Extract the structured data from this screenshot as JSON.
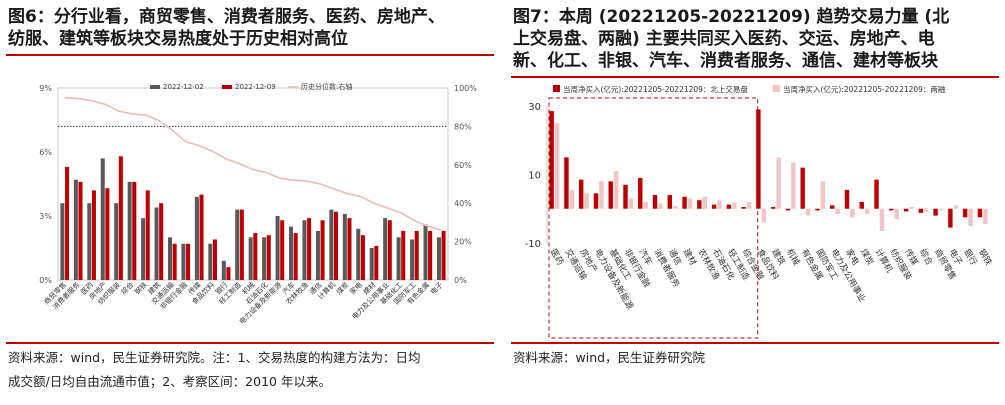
{
  "colors": {
    "dark": "#595959",
    "red": "#c00000",
    "pink": "#f2c4c4",
    "line": "#f0b8b8",
    "accent": "#c00000"
  },
  "left": {
    "title_lines": [
      "图6：分行业看，商贸零售、消费者服务、医药、房地产、",
      "纺服、建筑等板块交易热度处于历史相对高位"
    ],
    "note_lines": [
      "资料来源：wind，民生证券研究院。注：1、交易热度的构建方法为：日均",
      "成交额/日均自由流通市值；2、考察区间：2010 年以来。"
    ]
  },
  "right": {
    "title_lines": [
      "图7：本周 (20221205-20221209) 趋势交易力量 (北",
      "上交易盘、两融) 主要共同买入医药、交运、房地产、电",
      "新、化工、非银、汽车、消费者服务、通信、建材等板块"
    ],
    "note_lines": [
      "资料来源：wind，民生证券研究院"
    ]
  },
  "chart_data": [
    {
      "type": "bar",
      "title": "",
      "categories": [
        "商贸零售",
        "消费者服务",
        "医药",
        "房地产",
        "纺织服装",
        "综合",
        "钢铁",
        "建筑",
        "交通运输",
        "非银行金融",
        "传媒",
        "食品饮料",
        "银行",
        "轻工制造",
        "机械",
        "石油石化",
        "电力设备及新能源",
        "汽车",
        "农林牧渔",
        "通信",
        "计算机",
        "煤炭",
        "家电",
        "建材",
        "电力及公用事业",
        "基础化工",
        "国防军工",
        "有色金属",
        "电子"
      ],
      "series": [
        {
          "name": "2022-12-02",
          "axis": "left",
          "values": [
            3.6,
            4.7,
            3.6,
            5.7,
            3.6,
            4.6,
            2.9,
            3.4,
            2.0,
            1.7,
            3.9,
            1.7,
            0.9,
            3.3,
            2.0,
            2.0,
            3.0,
            2.5,
            2.8,
            2.3,
            3.3,
            3.1,
            2.4,
            1.5,
            2.9,
            2.0,
            1.9,
            2.6,
            2.0
          ]
        },
        {
          "name": "2022-12-09",
          "axis": "left",
          "values": [
            5.3,
            4.6,
            4.2,
            4.3,
            5.8,
            4.6,
            4.2,
            3.6,
            1.7,
            1.7,
            4.0,
            1.9,
            0.6,
            3.3,
            2.2,
            2.1,
            2.8,
            2.2,
            2.9,
            2.8,
            3.2,
            2.9,
            2.1,
            1.6,
            2.8,
            2.3,
            2.3,
            2.3,
            2.3
          ]
        },
        {
          "name": "历史分位数:右轴",
          "axis": "right",
          "type": "line",
          "values": [
            95,
            94.5,
            93.5,
            91.5,
            88,
            86.5,
            86,
            83,
            78,
            72,
            70,
            67,
            63,
            60.5,
            57.5,
            56,
            53,
            52,
            51.5,
            50,
            47.5,
            45,
            43.5,
            40,
            37.5,
            35,
            31,
            28,
            26
          ]
        }
      ],
      "yleft_ticks": [
        "0%",
        "3%",
        "6%",
        "9%"
      ],
      "yleft_lim": [
        0,
        9
      ],
      "yright_ticks": [
        "0%",
        "20%",
        "40%",
        "60%",
        "80%",
        "100%"
      ],
      "yright_lim": [
        0,
        100
      ],
      "ref_line_right": 80,
      "legend_position": "top"
    },
    {
      "type": "bar",
      "title": "",
      "categories": [
        "医药",
        "交通运输",
        "房地产",
        "电力设备及新能源",
        "基础化工",
        "非银行金融",
        "汽车",
        "消费者服务",
        "通信",
        "建材",
        "农林牧渔",
        "石油石化",
        "轻工制造",
        "综合金融",
        "食品饮料",
        "建筑",
        "机械",
        "有色金属",
        "国防军工",
        "电力及公用事业",
        "家电",
        "煤炭",
        "计算机",
        "纺织服装",
        "传媒",
        "综合",
        "商贸零售",
        "电子",
        "银行",
        "钢铁"
      ],
      "series": [
        {
          "name": "当周净买入(亿元):20221205-20221209：北上交易盘",
          "values": [
            28.5,
            15,
            8.5,
            4.5,
            8,
            7,
            9,
            4,
            4,
            3.5,
            2.5,
            1.2,
            1.2,
            0.5,
            29,
            0.5,
            -0.5,
            12,
            -0.5,
            1,
            5.5,
            2,
            8.5,
            -0.5,
            -0.8,
            -1.2,
            -2,
            -5.5,
            -2.5,
            -2.5
          ]
        },
        {
          "name": "当周净买入(亿元):20221205-20221209：两融",
          "values": [
            25,
            5.5,
            4.5,
            8,
            11,
            3,
            2,
            1.5,
            0.8,
            3,
            3.5,
            2.5,
            1.8,
            2,
            -4,
            15,
            13.5,
            -2,
            8,
            -1.5,
            -2.5,
            -1.5,
            -6.5,
            -3,
            0.5,
            -1,
            -0.5,
            1,
            -5,
            -4.5
          ]
        }
      ],
      "yticks": [
        "-10",
        "10",
        "30"
      ],
      "ylim": [
        -10,
        30
      ],
      "legend_position": "top"
    }
  ]
}
